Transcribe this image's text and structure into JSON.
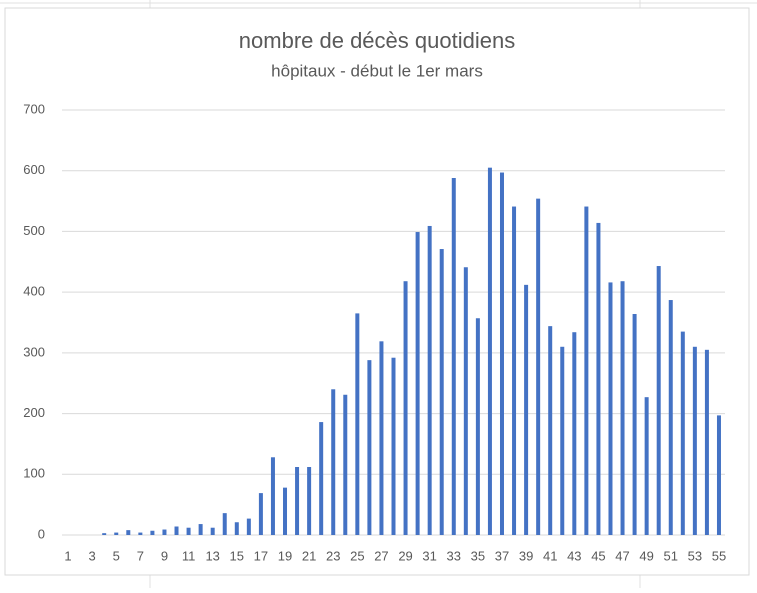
{
  "chart_data": {
    "type": "bar",
    "title": "nombre de décès quotidiens",
    "subtitle": "hôpitaux - début le 1er mars",
    "categories": [
      "1",
      null,
      "3",
      null,
      "5",
      null,
      "7",
      null,
      "9",
      null,
      "11",
      null,
      "13",
      null,
      "15",
      null,
      "17",
      null,
      "19",
      null,
      "21",
      null,
      "23",
      null,
      "25",
      null,
      "27",
      null,
      "29",
      null,
      "31",
      null,
      "33",
      null,
      "35",
      null,
      "37",
      null,
      "39",
      null,
      "41",
      null,
      "43",
      null,
      "45",
      null,
      "47",
      null,
      "49",
      null,
      "51",
      null,
      "53",
      null,
      "55"
    ],
    "values": [
      0,
      0,
      0,
      3,
      4,
      8,
      4,
      7,
      9,
      14,
      12,
      18,
      12,
      36,
      21,
      27,
      69,
      128,
      78,
      112,
      112,
      186,
      240,
      231,
      365,
      288,
      319,
      292,
      418,
      499,
      509,
      471,
      588,
      441,
      357,
      605,
      597,
      541,
      412,
      554,
      344,
      310,
      334,
      541,
      514,
      416,
      418,
      364,
      227,
      443,
      387,
      335,
      310,
      305,
      197
    ],
    "color": "#4472c4",
    "ylim": [
      0,
      700
    ],
    "yticks": [
      0,
      100,
      200,
      300,
      400,
      500,
      600,
      700
    ],
    "grid": true
  }
}
